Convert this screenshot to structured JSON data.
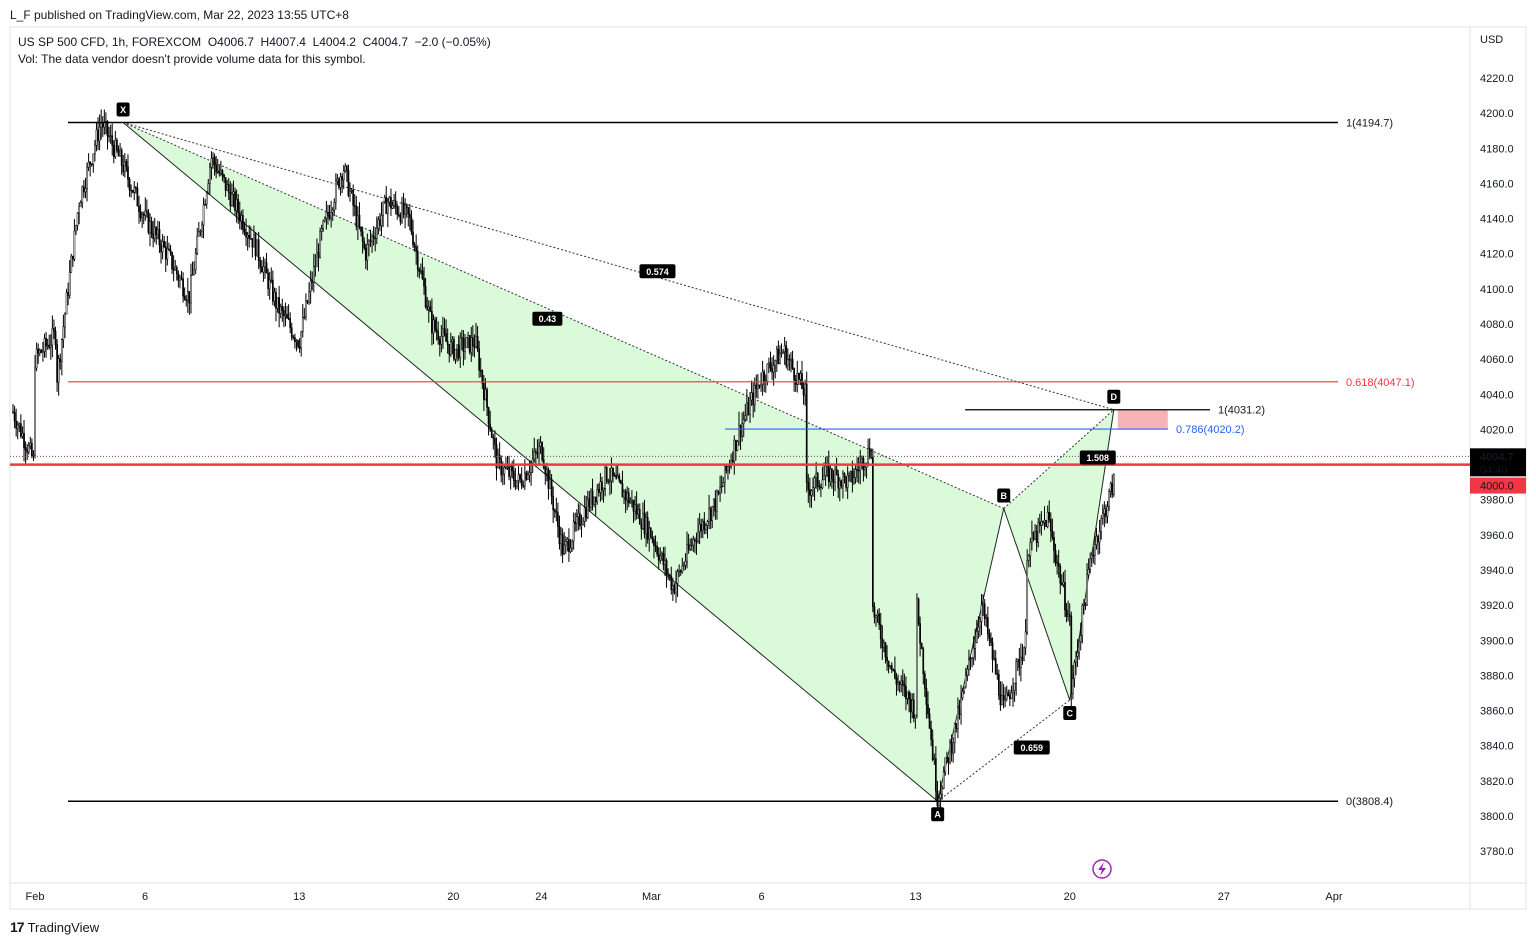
{
  "header": {
    "published": "L_F published on TradingView.com, Mar 22, 2023 13:55 UTC+8",
    "legend_line1": "US SP 500 CFD, 1h, FOREXCOM  O4006.7  H4007.4  L4004.2  C4004.7  −2.0 (−0.05%)",
    "legend_line2": "Vol: The data vendor doesn't provide volume data for this symbol.",
    "currency": "USD"
  },
  "footer": {
    "brand": "TradingView",
    "logo_glyph": "17"
  },
  "colors": {
    "pattern_fill": "#d6f9d6",
    "support_red": "#f23645",
    "fib_blue": "#2962ff",
    "prz_pink": "#f5b3b8",
    "watermark_purple": "#9c27b0"
  },
  "chart_data": {
    "type": "candlestick",
    "symbol": "US SP 500 CFD",
    "interval": "1h",
    "ylim": [
      3760,
      4240
    ],
    "yticks": [
      3780,
      3800,
      3820,
      3840,
      3860,
      3880,
      3900,
      3920,
      3940,
      3960,
      3980,
      4000,
      4020,
      4040,
      4060,
      4080,
      4100,
      4120,
      4140,
      4160,
      4180,
      4200,
      4220
    ],
    "ytick_labels": [
      "3780.0",
      "3800.0",
      "3820.0",
      "3840.0",
      "3860.0",
      "3880.0",
      "3900.0",
      "3920.0",
      "3940.0",
      "3960.0",
      "3980.0",
      "4000.0",
      "4020.0",
      "4040.0",
      "4060.0",
      "4080.0",
      "4100.0",
      "4120.0",
      "4140.0",
      "4160.0",
      "4180.0",
      "4200.0",
      "4220.0"
    ],
    "x_labels": [
      {
        "date": "2023-02-01",
        "label": "Feb"
      },
      {
        "date": "2023-02-06",
        "label": "6"
      },
      {
        "date": "2023-02-13",
        "label": "13"
      },
      {
        "date": "2023-02-20",
        "label": "20"
      },
      {
        "date": "2023-02-24",
        "label": "24"
      },
      {
        "date": "2023-03-01",
        "label": "Mar"
      },
      {
        "date": "2023-03-06",
        "label": "6"
      },
      {
        "date": "2023-03-13",
        "label": "13"
      },
      {
        "date": "2023-03-20",
        "label": "20"
      },
      {
        "date": "2023-03-27",
        "label": "27"
      },
      {
        "date": "2023-04-01",
        "label": "Apr"
      }
    ],
    "price_path": [
      [
        "2023-01-31",
        4030
      ],
      [
        "2023-02-01",
        4000
      ],
      [
        "2023-02-01",
        4060
      ],
      [
        "2023-02-02",
        4075
      ],
      [
        "2023-02-02",
        4050
      ],
      [
        "2023-02-03",
        4150
      ],
      [
        "2023-02-04",
        4195
      ],
      [
        "2023-02-05",
        4170
      ],
      [
        "2023-02-06",
        4140
      ],
      [
        "2023-02-07",
        4120
      ],
      [
        "2023-02-08",
        4095
      ],
      [
        "2023-02-09",
        4175
      ],
      [
        "2023-02-10",
        4150
      ],
      [
        "2023-02-11",
        4125
      ],
      [
        "2023-02-12",
        4090
      ],
      [
        "2023-02-13",
        4070
      ],
      [
        "2023-02-14",
        4130
      ],
      [
        "2023-02-15",
        4170
      ],
      [
        "2023-02-16",
        4120
      ],
      [
        "2023-02-17",
        4150
      ],
      [
        "2023-02-18",
        4140
      ],
      [
        "2023-02-19",
        4080
      ],
      [
        "2023-02-20",
        4065
      ],
      [
        "2023-02-21",
        4070
      ],
      [
        "2023-02-22",
        4000
      ],
      [
        "2023-02-23",
        3990
      ],
      [
        "2023-02-24",
        4010
      ],
      [
        "2023-02-25",
        3950
      ],
      [
        "2023-02-26",
        3975
      ],
      [
        "2023-02-27",
        3995
      ],
      [
        "2023-02-28",
        3980
      ],
      [
        "2023-03-01",
        3960
      ],
      [
        "2023-03-02",
        3930
      ],
      [
        "2023-03-03",
        3960
      ],
      [
        "2023-03-04",
        3980
      ],
      [
        "2023-03-05",
        4020
      ],
      [
        "2023-03-06",
        4050
      ],
      [
        "2023-03-07",
        4065
      ],
      [
        "2023-03-08",
        4040
      ],
      [
        "2023-03-08",
        3985
      ],
      [
        "2023-03-09",
        3995
      ],
      [
        "2023-03-10",
        3990
      ],
      [
        "2023-03-11",
        4010
      ],
      [
        "2023-03-11",
        3920
      ],
      [
        "2023-03-12",
        3880
      ],
      [
        "2023-03-13",
        3860
      ],
      [
        "2023-03-13",
        3925
      ],
      [
        "2023-03-14",
        3810
      ],
      [
        "2023-03-15",
        3860
      ],
      [
        "2023-03-16",
        3920
      ],
      [
        "2023-03-17",
        3860
      ],
      [
        "2023-03-18",
        3900
      ],
      [
        "2023-03-18",
        3950
      ],
      [
        "2023-03-19",
        3970
      ],
      [
        "2023-03-20",
        3910
      ],
      [
        "2023-03-20",
        3866
      ],
      [
        "2023-03-21",
        3950
      ],
      [
        "2023-03-22",
        3990
      ],
      [
        "2023-03-22",
        4004.7
      ]
    ],
    "horizontal_levels": [
      {
        "name": "X-level",
        "value": 4194.7,
        "label": "1(4194.7)",
        "color": "#000000"
      },
      {
        "name": "fib-0618",
        "value": 4047.1,
        "label": "0.618(4047.1)",
        "color": "#f23645"
      },
      {
        "name": "fib-1-cd",
        "value": 4031.2,
        "label": "1(4031.2)",
        "color": "#000000"
      },
      {
        "name": "fib-0786",
        "value": 4020.2,
        "label": "0.786(4020.2)",
        "color": "#2962ff"
      },
      {
        "name": "support-4000",
        "value": 4000.0,
        "label": "",
        "color": "#f23645"
      },
      {
        "name": "A-level",
        "value": 3808.4,
        "label": "0(3808.4)",
        "color": "#000000"
      }
    ],
    "harmonic_pattern": {
      "points": [
        {
          "label": "X",
          "date": "2023-02-05",
          "price": 4194.7
        },
        {
          "label": "A",
          "date": "2023-03-14",
          "price": 3808.4
        },
        {
          "label": "B",
          "date": "2023-03-17",
          "price": 3975
        },
        {
          "label": "C",
          "date": "2023-03-20",
          "price": 3866
        },
        {
          "label": "D",
          "date": "2023-03-22",
          "price": 4031.2
        }
      ],
      "ratios": [
        {
          "label": "0.574",
          "date": "2023-03-01",
          "price": 4110
        },
        {
          "label": "0.43",
          "date": "2023-02-24",
          "price": 4083
        },
        {
          "label": "1.508",
          "date": "2023-03-21",
          "price": 4004
        },
        {
          "label": "0.659",
          "date": "2023-03-18",
          "price": 3839
        }
      ]
    },
    "last_price": {
      "value": 4004.7,
      "label": "4004.7",
      "countdown": "04:40"
    },
    "support_tag": {
      "value": 4000.0,
      "label": "4000.0"
    }
  }
}
